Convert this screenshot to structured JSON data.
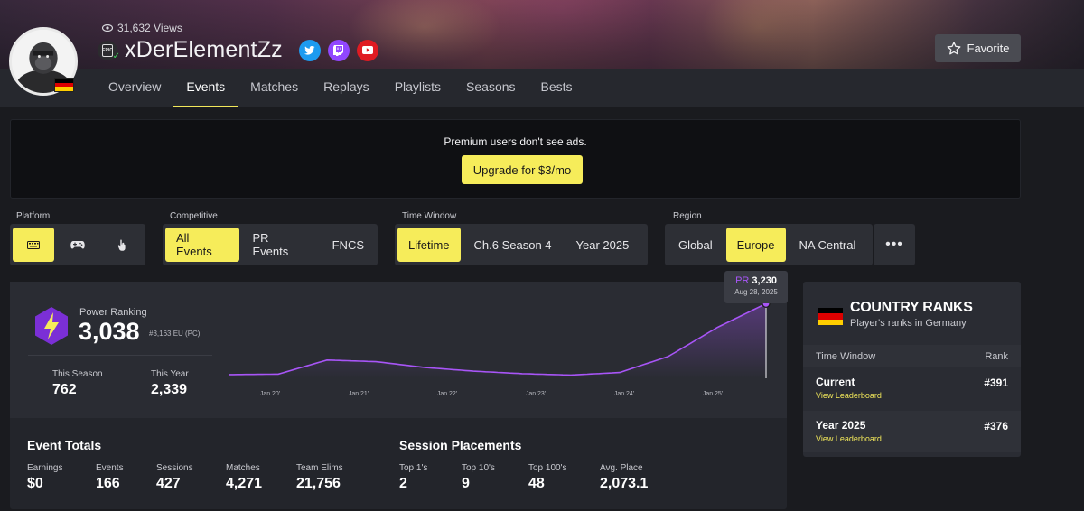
{
  "profile": {
    "views": "31,632 Views",
    "name": "xDerElementZz",
    "favorite_label": "Favorite",
    "platform_badge_text": "EPIC",
    "verified_mark": "✓"
  },
  "tabs": [
    "Overview",
    "Events",
    "Matches",
    "Replays",
    "Playlists",
    "Seasons",
    "Bests"
  ],
  "active_tab": "Events",
  "ad": {
    "text": "Premium users don't see ads.",
    "button": "Upgrade for $3/mo"
  },
  "filters": {
    "platform": {
      "label": "Platform",
      "options": [
        "keyboard-icon",
        "controller-icon",
        "touch-icon"
      ],
      "active": 0
    },
    "competitive": {
      "label": "Competitive",
      "options": [
        "All Events",
        "PR Events",
        "FNCS"
      ],
      "active": "All Events"
    },
    "time_window": {
      "label": "Time Window",
      "options": [
        "Lifetime",
        "Ch.6 Season 4",
        "Year 2025"
      ],
      "active": "Lifetime"
    },
    "region": {
      "label": "Region",
      "options": [
        "Global",
        "Europe",
        "NA Central"
      ],
      "active": "Europe",
      "more": "•••"
    }
  },
  "power_ranking": {
    "label": "Power Ranking",
    "value": "3,038",
    "sub": "#3,163 EU (PC)",
    "this_season_label": "This Season",
    "this_season_value": "762",
    "this_year_label": "This Year",
    "this_year_value": "2,339",
    "tooltip": {
      "prefix": "PR",
      "value": "3,230",
      "date": "Aug 28, 2025"
    }
  },
  "chart_data": {
    "type": "line",
    "series": [
      {
        "values_description": "",
        "x": [
          "Jan 20",
          "Jul 20",
          "Jan 21",
          "Jul 21",
          "Jan 22",
          "Jul 22",
          "Jan 23",
          "Jul 23",
          "Jan 24",
          "Jul 24",
          "Jan 25",
          "Aug 25"
        ],
        "values": [
          160,
          180,
          790,
          720,
          470,
          310,
          200,
          140,
          250,
          950,
          2200,
          3230
        ]
      }
    ],
    "tick_labels": [
      "Jan 20'",
      "Jan 21'",
      "Jan 22'",
      "Jan 23'",
      "Jan 24'",
      "Jan 25'"
    ],
    "ylim": [
      0,
      3400
    ],
    "color": "#a855f7",
    "grid": false
  },
  "event_totals": {
    "title": "Event Totals",
    "items": [
      {
        "label": "Earnings",
        "value": "$0"
      },
      {
        "label": "Events",
        "value": "166"
      },
      {
        "label": "Sessions",
        "value": "427"
      },
      {
        "label": "Matches",
        "value": "4,271"
      },
      {
        "label": "Team Elims",
        "value": "21,756"
      }
    ]
  },
  "session_placements": {
    "title": "Session Placements",
    "items": [
      {
        "label": "Top 1's",
        "value": "2"
      },
      {
        "label": "Top 10's",
        "value": "9"
      },
      {
        "label": "Top 100's",
        "value": "48"
      },
      {
        "label": "Avg. Place",
        "value": "2,073.1"
      }
    ]
  },
  "country_ranks": {
    "title": "COUNTRY RANKS",
    "subtitle": "Player's ranks in Germany",
    "col_time": "Time Window",
    "col_rank": "Rank",
    "rows": [
      {
        "label": "Current",
        "link": "View Leaderboard",
        "rank": "#391"
      },
      {
        "label": "Year 2025",
        "link": "View Leaderboard",
        "rank": "#376"
      }
    ]
  },
  "colors": {
    "accent": "#f6ec5a",
    "chart_line": "#a855f7",
    "flag": [
      "#000000",
      "#dd0000",
      "#ffce00"
    ]
  }
}
